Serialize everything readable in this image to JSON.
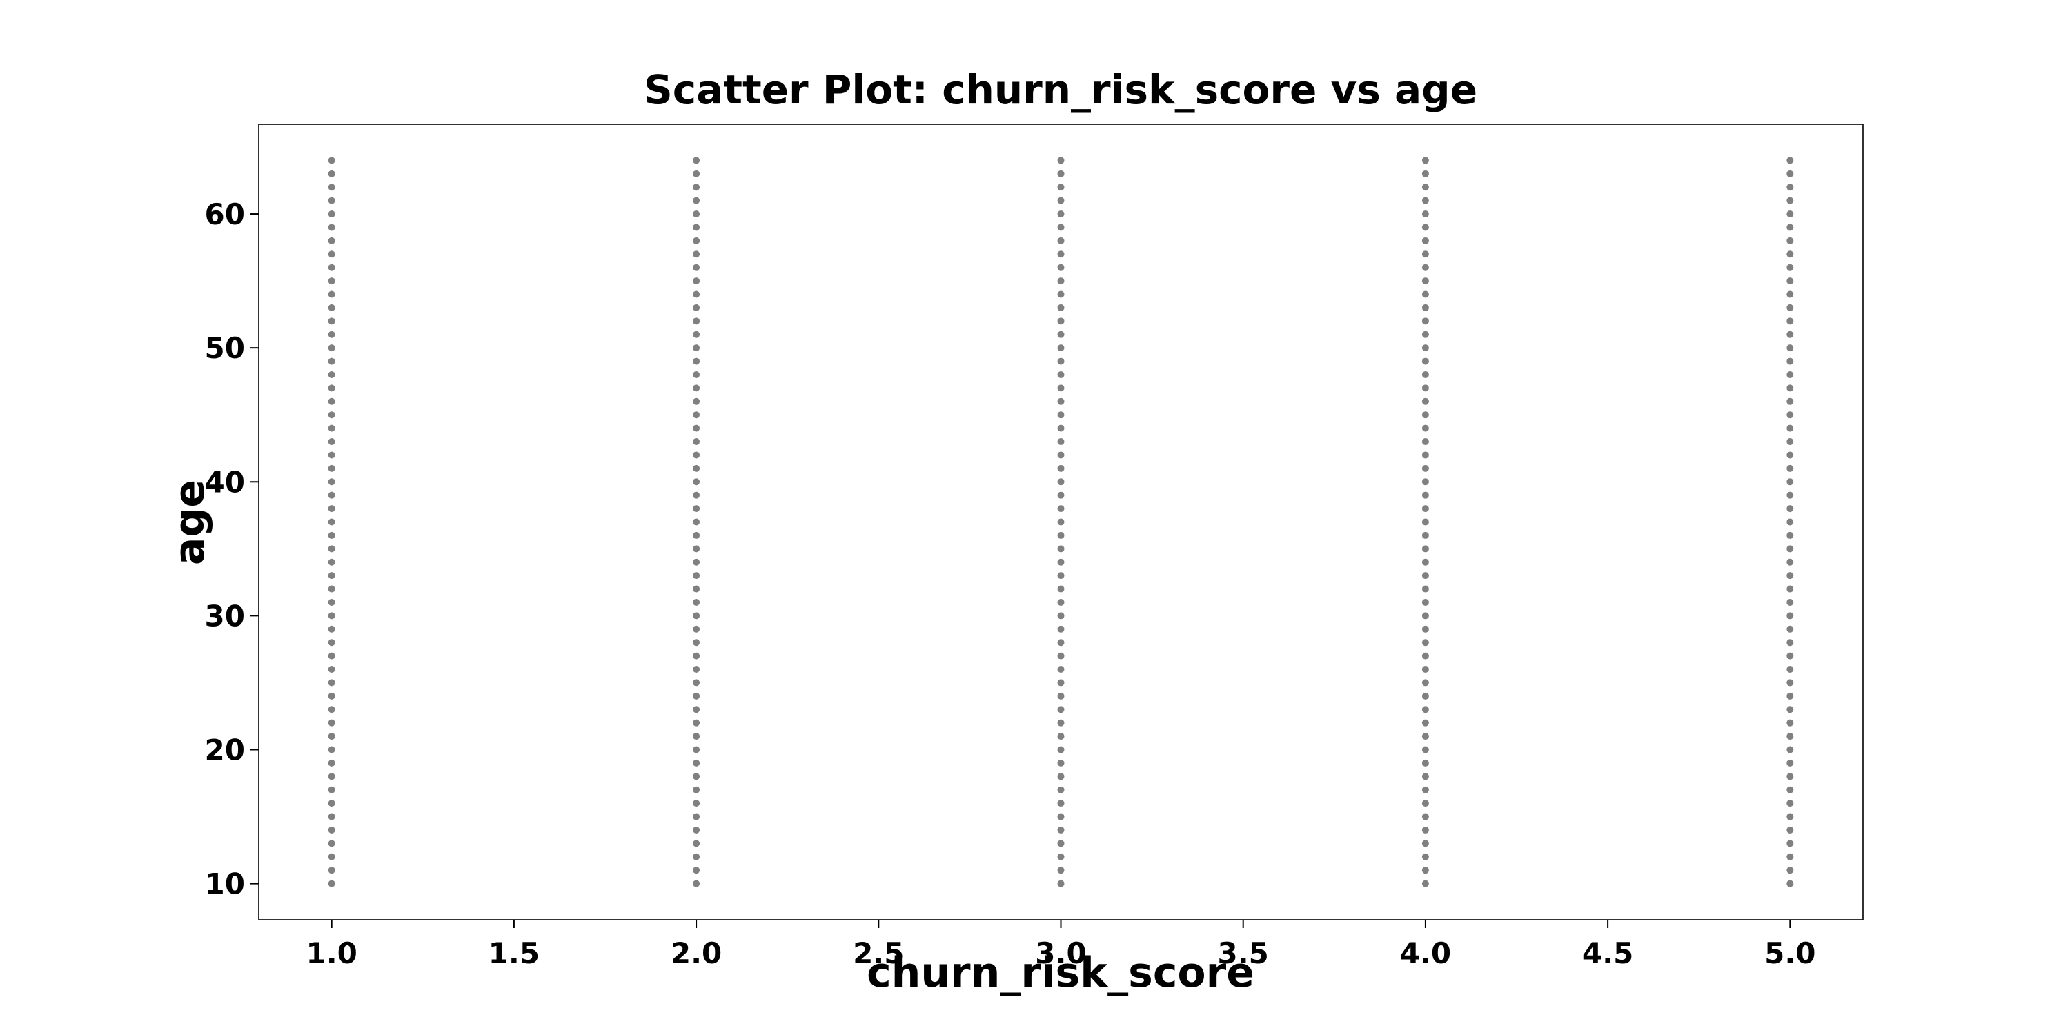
{
  "chart_data": {
    "type": "scatter",
    "title": "Scatter Plot: churn_risk_score vs age",
    "x_label": "churn_risk_score",
    "y_label": "age",
    "series": [
      {
        "color": "#808080",
        "x": [
          1,
          1,
          1,
          1,
          1,
          1,
          1,
          1,
          1,
          1,
          1,
          1,
          1,
          1,
          1,
          1,
          1,
          1,
          1,
          1,
          1,
          1,
          1,
          1,
          1,
          1,
          1,
          1,
          1,
          1,
          1,
          1,
          1,
          1,
          1,
          1,
          1,
          1,
          1,
          1,
          1,
          1,
          1,
          1,
          1,
          1,
          1,
          1,
          1,
          1,
          1,
          1,
          1,
          1,
          1,
          2,
          2,
          2,
          2,
          2,
          2,
          2,
          2,
          2,
          2,
          2,
          2,
          2,
          2,
          2,
          2,
          2,
          2,
          2,
          2,
          2,
          2,
          2,
          2,
          2,
          2,
          2,
          2,
          2,
          2,
          2,
          2,
          2,
          2,
          2,
          2,
          2,
          2,
          2,
          2,
          2,
          2,
          2,
          2,
          2,
          2,
          2,
          2,
          2,
          2,
          2,
          2,
          2,
          2,
          2,
          3,
          3,
          3,
          3,
          3,
          3,
          3,
          3,
          3,
          3,
          3,
          3,
          3,
          3,
          3,
          3,
          3,
          3,
          3,
          3,
          3,
          3,
          3,
          3,
          3,
          3,
          3,
          3,
          3,
          3,
          3,
          3,
          3,
          3,
          3,
          3,
          3,
          3,
          3,
          3,
          3,
          3,
          3,
          3,
          3,
          3,
          3,
          3,
          3,
          3,
          3,
          3,
          3,
          3,
          3,
          4,
          4,
          4,
          4,
          4,
          4,
          4,
          4,
          4,
          4,
          4,
          4,
          4,
          4,
          4,
          4,
          4,
          4,
          4,
          4,
          4,
          4,
          4,
          4,
          4,
          4,
          4,
          4,
          4,
          4,
          4,
          4,
          4,
          4,
          4,
          4,
          4,
          4,
          4,
          4,
          4,
          4,
          4,
          4,
          4,
          4,
          4,
          4,
          4,
          4,
          4,
          4,
          4,
          4,
          4,
          5,
          5,
          5,
          5,
          5,
          5,
          5,
          5,
          5,
          5,
          5,
          5,
          5,
          5,
          5,
          5,
          5,
          5,
          5,
          5,
          5,
          5,
          5,
          5,
          5,
          5,
          5,
          5,
          5,
          5,
          5,
          5,
          5,
          5,
          5,
          5,
          5,
          5,
          5,
          5,
          5,
          5,
          5,
          5,
          5,
          5,
          5,
          5,
          5,
          5,
          5,
          5,
          5,
          5,
          5
        ],
        "values": [
          10,
          11,
          12,
          13,
          14,
          15,
          16,
          17,
          18,
          19,
          20,
          21,
          22,
          23,
          24,
          25,
          26,
          27,
          28,
          29,
          30,
          31,
          32,
          33,
          34,
          35,
          36,
          37,
          38,
          39,
          40,
          41,
          42,
          43,
          44,
          45,
          46,
          47,
          48,
          49,
          50,
          51,
          52,
          53,
          54,
          55,
          56,
          57,
          58,
          59,
          60,
          61,
          62,
          63,
          64,
          10,
          11,
          12,
          13,
          14,
          15,
          16,
          17,
          18,
          19,
          20,
          21,
          22,
          23,
          24,
          25,
          26,
          27,
          28,
          29,
          30,
          31,
          32,
          33,
          34,
          35,
          36,
          37,
          38,
          39,
          40,
          41,
          42,
          43,
          44,
          45,
          46,
          47,
          48,
          49,
          50,
          51,
          52,
          53,
          54,
          55,
          56,
          57,
          58,
          59,
          60,
          61,
          62,
          63,
          64,
          10,
          11,
          12,
          13,
          14,
          15,
          16,
          17,
          18,
          19,
          20,
          21,
          22,
          23,
          24,
          25,
          26,
          27,
          28,
          29,
          30,
          31,
          32,
          33,
          34,
          35,
          36,
          37,
          38,
          39,
          40,
          41,
          42,
          43,
          44,
          45,
          46,
          47,
          48,
          49,
          50,
          51,
          52,
          53,
          54,
          55,
          56,
          57,
          58,
          59,
          60,
          61,
          62,
          63,
          64,
          10,
          11,
          12,
          13,
          14,
          15,
          16,
          17,
          18,
          19,
          20,
          21,
          22,
          23,
          24,
          25,
          26,
          27,
          28,
          29,
          30,
          31,
          32,
          33,
          34,
          35,
          36,
          37,
          38,
          39,
          40,
          41,
          42,
          43,
          44,
          45,
          46,
          47,
          48,
          49,
          50,
          51,
          52,
          53,
          54,
          55,
          56,
          57,
          58,
          59,
          60,
          61,
          62,
          63,
          64,
          10,
          11,
          12,
          13,
          14,
          15,
          16,
          17,
          18,
          19,
          20,
          21,
          22,
          23,
          24,
          25,
          26,
          27,
          28,
          29,
          30,
          31,
          32,
          33,
          34,
          35,
          36,
          37,
          38,
          39,
          40,
          41,
          42,
          43,
          44,
          45,
          46,
          47,
          48,
          49,
          50,
          51,
          52,
          53,
          54,
          55,
          56,
          57,
          58,
          59,
          60,
          61,
          62,
          63,
          64
        ]
      }
    ],
    "xlim": [
      0.8,
      5.2
    ],
    "xticks": [
      {
        "value": 1,
        "label": "1.0"
      },
      1.5,
      {
        "value": 2,
        "label": "2.0"
      },
      2.5,
      {
        "value": 3,
        "label": "3.0"
      },
      3.5,
      {
        "value": 4,
        "label": "4.0"
      },
      4.5,
      {
        "value": 5,
        "label": "5.0"
      }
    ],
    "ylim": [
      7.3,
      66.7
    ],
    "yticks": [
      10,
      20,
      30,
      40,
      50,
      60
    ],
    "grid": false
  }
}
